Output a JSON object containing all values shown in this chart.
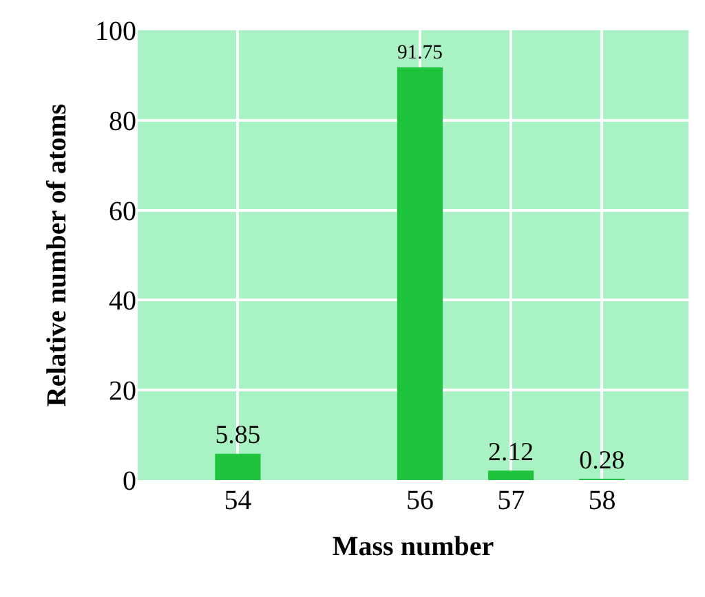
{
  "chart_data": {
    "type": "bar",
    "xlabel": "Mass number",
    "ylabel": "Relative number of atoms",
    "x": [
      54,
      56,
      57,
      58
    ],
    "values": [
      5.85,
      91.75,
      2.12,
      0.28
    ],
    "color": "#1ec43c",
    "xlim": [
      52.9,
      58.95
    ],
    "xticks": [
      54,
      56,
      57,
      58
    ],
    "ylim": [
      0,
      100
    ],
    "yticks": [
      0,
      20,
      40,
      60,
      80,
      100
    ],
    "grid": true,
    "data_labels": true
  }
}
